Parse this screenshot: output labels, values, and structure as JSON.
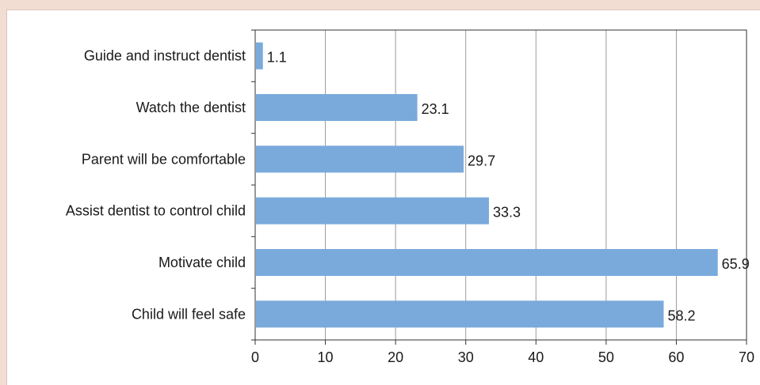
{
  "chart_data": {
    "type": "bar",
    "orientation": "horizontal",
    "title": "",
    "xlabel": "",
    "ylabel": "",
    "categories": [
      "Guide and instruct dentist",
      "Watch the dentist",
      "Parent will be comfortable",
      "Assist dentist to control child",
      "Motivate child",
      "Child will feel safe"
    ],
    "values": [
      1.1,
      23.1,
      29.7,
      33.3,
      65.9,
      58.2
    ],
    "value_labels": [
      "1.1",
      "23.1",
      "29.7",
      "33.3",
      "65.9",
      "58.2"
    ],
    "xlim": [
      0,
      70
    ],
    "xticks": [
      0,
      10,
      20,
      30,
      40,
      50,
      60,
      70
    ],
    "grid": "vertical",
    "legend": "none",
    "bar_color": "#7aaadc",
    "background_color": "#f2ddd3"
  }
}
